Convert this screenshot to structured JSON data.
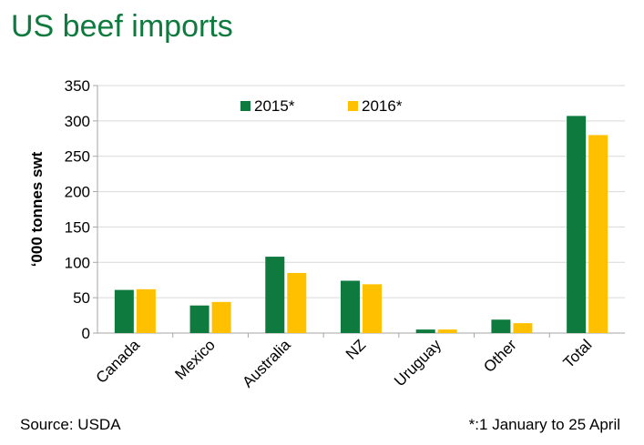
{
  "title": "US beef imports",
  "source": "Source: USDA",
  "footnote": "*:1 January  to 25 April",
  "chart_data": {
    "type": "bar",
    "title": "US beef imports",
    "ylabel": "‘000 tonnes swt",
    "xlabel": "",
    "ylim": [
      0,
      350
    ],
    "yticks": [
      0,
      50,
      100,
      150,
      200,
      250,
      300,
      350
    ],
    "grid": true,
    "legend_position": "top-center",
    "categories": [
      "Canada",
      "Mexico",
      "Australia",
      "NZ",
      "Uruguay",
      "Other",
      "Total"
    ],
    "series": [
      {
        "name": "2015*",
        "color": "#0f7a3d",
        "values": [
          61,
          39,
          108,
          74,
          5,
          19,
          307
        ]
      },
      {
        "name": "2016*",
        "color": "#ffc000",
        "values": [
          62,
          44,
          85,
          69,
          5,
          14,
          280
        ]
      }
    ]
  }
}
